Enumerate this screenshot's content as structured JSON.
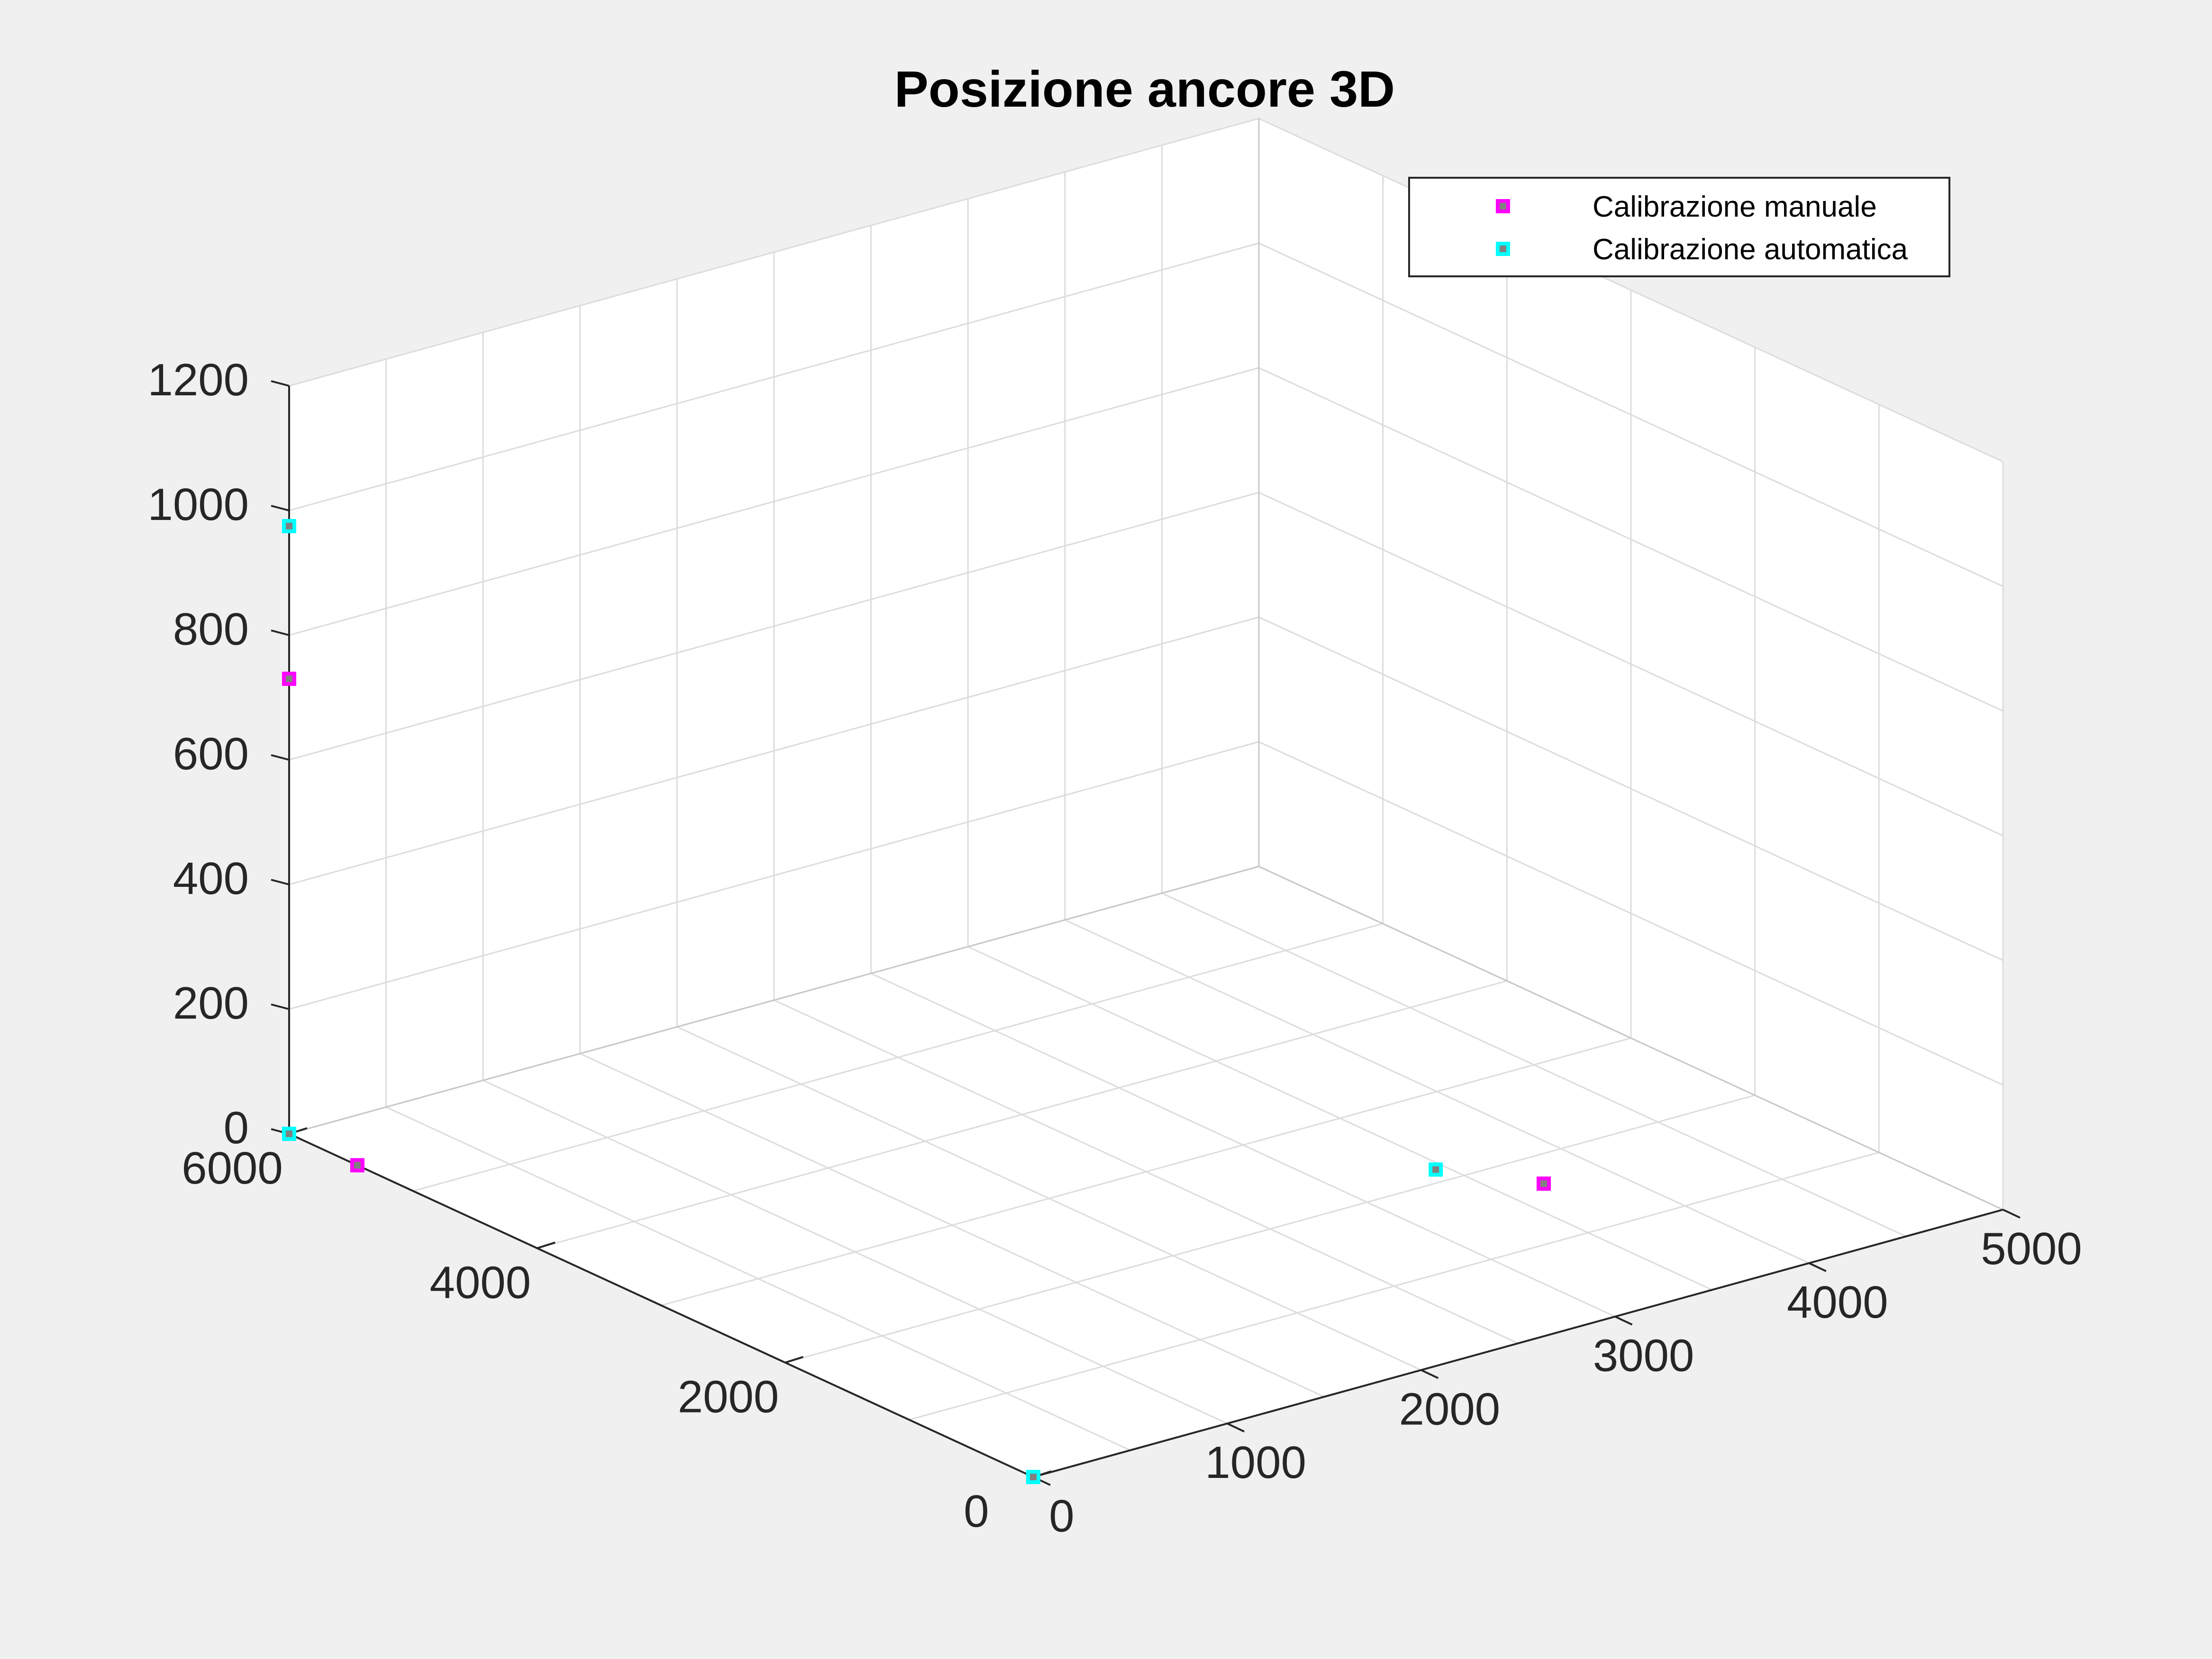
{
  "chart_data": {
    "type": "scatter",
    "title": "Posizione ancore 3D",
    "xlim": [
      0,
      5000
    ],
    "ylim": [
      0,
      6000
    ],
    "zlim": [
      0,
      1200
    ],
    "x_ticks": [
      "0",
      "1000",
      "2000",
      "3000",
      "4000",
      "5000"
    ],
    "y_ticks": [
      "0",
      "2000",
      "4000",
      "6000"
    ],
    "z_ticks": [
      "0",
      "200",
      "400",
      "600",
      "800",
      "1000",
      "1200"
    ],
    "grid": true,
    "box": true,
    "legend": {
      "position": "top-right"
    },
    "series": [
      {
        "name": "Calibrazione manuale",
        "color": "#ff00ff",
        "marker": "square",
        "points": [
          {
            "x": 0,
            "y": 0,
            "z": 0
          },
          {
            "x": 0,
            "y": 5450,
            "z": 0
          },
          {
            "x": 3700,
            "y": 1670,
            "z": 0
          },
          {
            "x": 0,
            "y": 6000,
            "z": 730
          }
        ]
      },
      {
        "name": "Calibrazione automatica",
        "color": "#00ffff",
        "marker": "square",
        "points": [
          {
            "x": 0,
            "y": 0,
            "z": 0
          },
          {
            "x": 0,
            "y": 6000,
            "z": 0
          },
          {
            "x": 3450,
            "y": 2150,
            "z": 0
          },
          {
            "x": 0,
            "y": 6000,
            "z": 975
          }
        ]
      }
    ]
  }
}
